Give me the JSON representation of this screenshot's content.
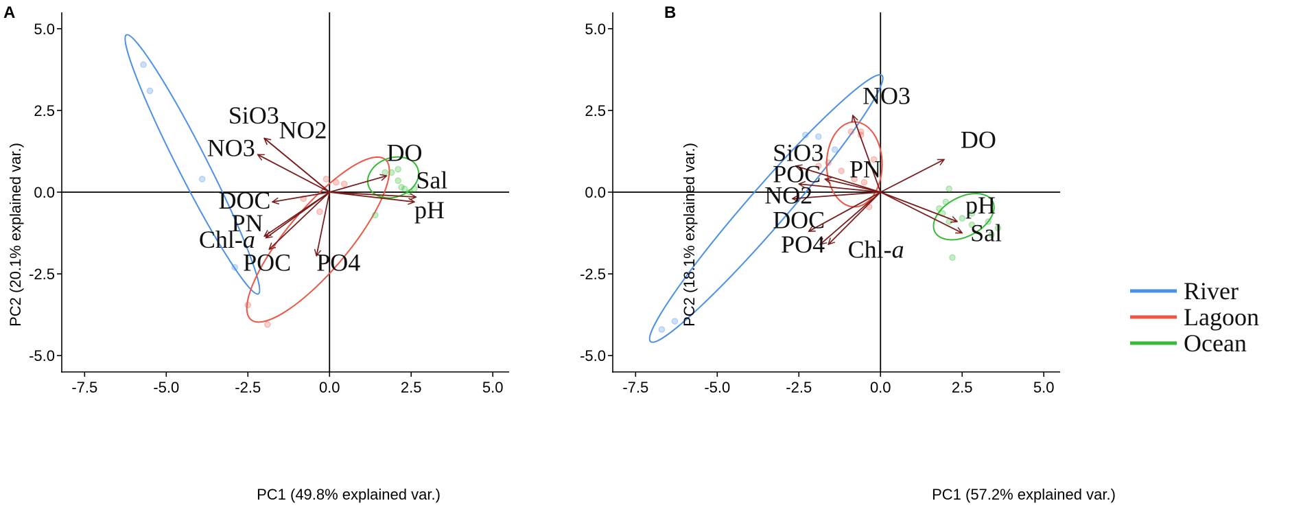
{
  "chart_data": [
    {
      "type": "scatter",
      "panel": "A",
      "xlabel": "PC1 (49.8% explained var.)",
      "ylabel": "PC2 (20.1% explained var.)",
      "xlim": [
        -8.2,
        5.5
      ],
      "ylim": [
        -5.5,
        5.5
      ],
      "x_ticks": [
        -7.5,
        -5.0,
        -2.5,
        0.0,
        2.5,
        5.0
      ],
      "x_tick_labels": [
        "-7.5",
        "-5.0",
        "-2.5",
        "0.0",
        "2.5",
        "5.0"
      ],
      "y_ticks": [
        -5.0,
        -2.5,
        0.0,
        2.5,
        5.0
      ],
      "y_tick_labels": [
        "-5.0",
        "-2.5",
        "0.0",
        "2.5",
        "5.0"
      ],
      "groups": [
        {
          "name": "River",
          "color": "#4a90e8",
          "points": [
            [
              -5.7,
              3.9
            ],
            [
              -5.5,
              3.1
            ],
            [
              -3.9,
              0.4
            ],
            [
              -2.9,
              -2.3
            ]
          ],
          "ellipse": {
            "cx": -4.2,
            "cy": 0.85,
            "rx": 4.45,
            "ry": 0.45,
            "angle_deg": -63
          }
        },
        {
          "name": "Lagoon",
          "color": "#ee5544",
          "points": [
            [
              -2.5,
              -3.45
            ],
            [
              -1.9,
              -4.05
            ],
            [
              -0.8,
              -0.2
            ],
            [
              -0.3,
              -0.6
            ],
            [
              0.2,
              0.3
            ],
            [
              0.45,
              0.25
            ],
            [
              -0.1,
              0.4
            ]
          ],
          "ellipse": {
            "cx": -0.35,
            "cy": -1.45,
            "rx": 3.2,
            "ry": 0.95,
            "angle_deg": 50
          }
        },
        {
          "name": "Ocean",
          "color": "#33bb33",
          "points": [
            [
              1.4,
              -0.7
            ],
            [
              1.7,
              0.6
            ],
            [
              1.9,
              0.6
            ],
            [
              2.1,
              0.7
            ],
            [
              2.2,
              0.15
            ],
            [
              2.3,
              0.1
            ],
            [
              2.45,
              0.0
            ],
            [
              2.6,
              0.1
            ],
            [
              2.1,
              0.35
            ]
          ],
          "ellipse": {
            "cx": 1.95,
            "cy": 0.45,
            "rx": 0.8,
            "ry": 0.6,
            "angle_deg": 20
          }
        }
      ],
      "loadings": [
        {
          "label": "SiO3",
          "x": -2.0,
          "y": 1.65
        },
        {
          "label": "NO2",
          "x": -2.0,
          "y": 1.65
        },
        {
          "label": "NO3",
          "x": -2.2,
          "y": 1.15
        },
        {
          "label": "DO",
          "x": 1.75,
          "y": 0.5
        },
        {
          "label": "Sal",
          "x": 2.65,
          "y": -0.15
        },
        {
          "label": "pH",
          "x": 2.6,
          "y": -0.3
        },
        {
          "label": "DOC",
          "x": -1.75,
          "y": -0.3
        },
        {
          "label": "PN",
          "x": -2.0,
          "y": -1.35
        },
        {
          "label": "Chl-a",
          "x": -1.95,
          "y": -1.4
        },
        {
          "label": "POC",
          "x": -1.85,
          "y": -1.75
        },
        {
          "label": "PO4",
          "x": -0.4,
          "y": -1.95
        }
      ],
      "label_texts": [
        {
          "text": "SiO3",
          "x": -3.1,
          "y": 2.1
        },
        {
          "text": "NO2",
          "x": -1.55,
          "y": 1.65
        },
        {
          "text": "NO3",
          "x": -3.75,
          "y": 1.1
        },
        {
          "text": "DO",
          "x": 1.75,
          "y": 0.95
        },
        {
          "text": "Sal",
          "x": 2.65,
          "y": 0.12
        },
        {
          "text": "pH",
          "x": 2.6,
          "y": -0.8
        },
        {
          "text": "DOC",
          "x": -3.4,
          "y": -0.5
        },
        {
          "text": "PN",
          "x": -3.0,
          "y": -1.2
        },
        {
          "text": "POC",
          "x": -2.65,
          "y": -2.4
        },
        {
          "text": "PO4",
          "x": -0.4,
          "y": -2.4
        }
      ],
      "chl_label": {
        "prefix": "Chl-",
        "suffix": "a",
        "x": -4.0,
        "y": -1.7
      }
    },
    {
      "type": "scatter",
      "panel": "B",
      "xlabel": "PC1 (57.2% explained var.)",
      "ylabel": "PC2 (18.1% explained var.)",
      "xlim": [
        -8.2,
        5.5
      ],
      "ylim": [
        -5.5,
        5.5
      ],
      "x_ticks": [
        -7.5,
        -5.0,
        -2.5,
        0.0,
        2.5,
        5.0
      ],
      "x_tick_labels": [
        "-7.5",
        "-5.0",
        "-2.5",
        "0.0",
        "2.5",
        "5.0"
      ],
      "y_ticks": [
        -5.0,
        -2.5,
        0.0,
        2.5,
        5.0
      ],
      "y_tick_labels": [
        "-5.0",
        "-2.5",
        "0.0",
        "2.5",
        "5.0"
      ],
      "groups": [
        {
          "name": "River",
          "color": "#4a90e8",
          "points": [
            [
              -6.7,
              -4.2
            ],
            [
              -6.3,
              -3.95
            ],
            [
              -2.3,
              1.75
            ],
            [
              -1.9,
              1.7
            ],
            [
              -1.4,
              1.3
            ]
          ],
          "ellipse": {
            "cx": -3.5,
            "cy": -0.5,
            "rx": 5.4,
            "ry": 0.6,
            "angle_deg": 49
          }
        },
        {
          "name": "Lagoon",
          "color": "#ee5544",
          "points": [
            [
              -1.9,
              0.8
            ],
            [
              -1.6,
              0.9
            ],
            [
              -0.9,
              1.85
            ],
            [
              -0.6,
              1.85
            ],
            [
              -0.6,
              1.75
            ],
            [
              -0.2,
              1.0
            ],
            [
              -0.35,
              -0.45
            ],
            [
              -1.2,
              0.65
            ],
            [
              -0.8,
              0.4
            ],
            [
              -0.5,
              0.3
            ]
          ],
          "ellipse": {
            "cx": -0.8,
            "cy": 0.85,
            "rx": 0.85,
            "ry": 1.3,
            "angle_deg": 0
          }
        },
        {
          "name": "Ocean",
          "color": "#33bb33",
          "points": [
            [
              2.1,
              0.1
            ],
            [
              2.0,
              -0.3
            ],
            [
              1.8,
              -0.5
            ],
            [
              1.9,
              -0.65
            ],
            [
              2.1,
              -0.9
            ],
            [
              2.2,
              -2.0
            ],
            [
              2.8,
              -0.65
            ],
            [
              3.3,
              -0.9
            ],
            [
              3.6,
              -1.1
            ],
            [
              3.4,
              -1.3
            ],
            [
              2.5,
              -0.8
            ],
            [
              2.8,
              -1.0
            ]
          ],
          "ellipse": {
            "cx": 2.55,
            "cy": -0.75,
            "rx": 1.0,
            "ry": 0.6,
            "angle_deg": 28
          }
        }
      ],
      "loadings": [
        {
          "label": "NO3",
          "x": -0.85,
          "y": 2.35
        },
        {
          "label": "DO",
          "x": 1.95,
          "y": 1.0
        },
        {
          "label": "SiO3",
          "x": -2.6,
          "y": 0.8
        },
        {
          "label": "PN",
          "x": -1.7,
          "y": 0.4
        },
        {
          "label": "POC",
          "x": -2.5,
          "y": 0.25
        },
        {
          "label": "NO2",
          "x": -2.7,
          "y": -0.2
        },
        {
          "label": "DOC",
          "x": -2.2,
          "y": -1.2
        },
        {
          "label": "PO4",
          "x": -1.85,
          "y": -1.6
        },
        {
          "label": "Chl-a",
          "x": -1.6,
          "y": -1.6
        },
        {
          "label": "pH",
          "x": 2.35,
          "y": -0.9
        },
        {
          "label": "Sal",
          "x": 2.5,
          "y": -1.25
        }
      ],
      "label_texts": [
        {
          "text": "NO3",
          "x": -0.55,
          "y": 2.7
        },
        {
          "text": "DO",
          "x": 2.45,
          "y": 1.35
        },
        {
          "text": "SiO3",
          "x": -3.3,
          "y": 0.95
        },
        {
          "text": "PN",
          "x": -0.95,
          "y": 0.45
        },
        {
          "text": "POC",
          "x": -3.3,
          "y": 0.3
        },
        {
          "text": "NO2",
          "x": -3.55,
          "y": -0.35
        },
        {
          "text": "DOC",
          "x": -3.3,
          "y": -1.1
        },
        {
          "text": "PO4",
          "x": -3.05,
          "y": -1.85
        },
        {
          "text": "pH",
          "x": 2.6,
          "y": -0.65
        },
        {
          "text": "Sal",
          "x": 2.75,
          "y": -1.5
        }
      ],
      "chl_label": {
        "prefix": "Chl-",
        "suffix": "a",
        "x": -1.0,
        "y": -2.0
      },
      "legend": {
        "position": "bottom-right",
        "items": [
          {
            "label": "River",
            "color": "#4a90e8"
          },
          {
            "label": "Lagoon",
            "color": "#ee5544"
          },
          {
            "label": "Ocean",
            "color": "#33bb33"
          }
        ]
      }
    }
  ],
  "colors": {
    "arrow": "#7a1c1c",
    "axis": "#000000"
  }
}
